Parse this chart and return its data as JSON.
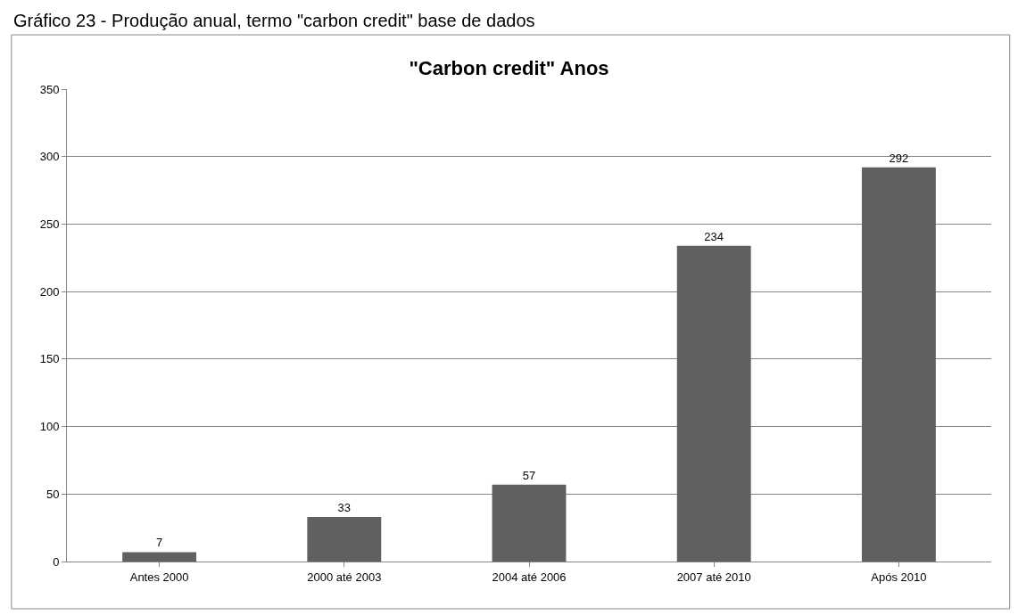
{
  "chart_data": {
    "type": "bar",
    "title": "\"Carbon credit\" Anos",
    "annotations": [
      "Gráfico 23 - Produção anual, termo \"carbon credit\" base de dados"
    ],
    "categories": [
      "Antes 2000",
      "2000 até 2003",
      "2004 até 2006",
      "2007 até 2010",
      "Após 2010"
    ],
    "values": [
      7,
      33,
      57,
      234,
      292
    ],
    "color": "#606060",
    "ylim": [
      0,
      350
    ],
    "yticks": [
      0,
      50,
      100,
      150,
      200,
      250,
      300,
      350
    ],
    "grid": "y",
    "data_labels": true,
    "legend": false
  }
}
